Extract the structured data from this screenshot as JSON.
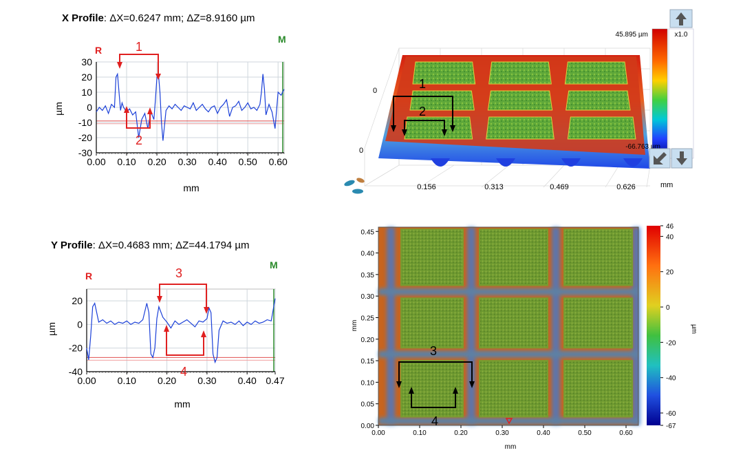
{
  "x_profile": {
    "title_bold": "X Profile",
    "title_rest": ": ΔX=0.6247 mm; ΔZ=8.9160 µm",
    "ylabel": "µm",
    "xlabel": "mm",
    "r_marker": "R",
    "m_marker": "M",
    "annotation_1": "1",
    "annotation_2": "2"
  },
  "y_profile": {
    "title_bold": "Y Profile",
    "title_rest": ": ΔX=0.4683 mm; ΔZ=44.1794 µm",
    "ylabel": "µm",
    "xlabel": "mm",
    "r_marker": "R",
    "m_marker": "M",
    "annotation_3": "3",
    "annotation_4": "4"
  },
  "surface_3d": {
    "colorbar_max": "45.895 µm",
    "colorbar_min": "-66.763 µm",
    "zoom": "x1.0",
    "x_unit": "mm",
    "axis_zero_top": "0",
    "axis_zero_bottom": "0",
    "annotation_1": "1",
    "annotation_2": "2",
    "x_ticks": [
      "0.156",
      "0.313",
      "0.469",
      "0.626"
    ]
  },
  "height_map": {
    "xlabel": "mm",
    "ylabel": "mm",
    "colorbar_label": "µm",
    "annotation_3": "3",
    "annotation_4": "4"
  },
  "chart_data": [
    {
      "type": "line",
      "id": "x_profile",
      "title": "X Profile: ΔX=0.6247 mm; ΔZ=8.9160 µm",
      "xlabel": "mm",
      "ylabel": "µm",
      "xlim": [
        0,
        0.62
      ],
      "ylim": [
        -30,
        30
      ],
      "x_ticks": [
        "0.00",
        "0.10",
        "0.20",
        "0.30",
        "0.40",
        "0.50",
        "0.60"
      ],
      "y_ticks": [
        "30",
        "20",
        "10",
        "0",
        "-10",
        "-20",
        "-30"
      ],
      "grid": true,
      "cursor_r_y": -9,
      "series": [
        {
          "color": "#1a3fd8",
          "x": [
            0.0,
            0.01,
            0.02,
            0.03,
            0.04,
            0.05,
            0.06,
            0.065,
            0.07,
            0.075,
            0.08,
            0.085,
            0.09,
            0.1,
            0.11,
            0.12,
            0.13,
            0.14,
            0.15,
            0.16,
            0.17,
            0.18,
            0.19,
            0.195,
            0.2,
            0.205,
            0.21,
            0.215,
            0.22,
            0.23,
            0.24,
            0.25,
            0.26,
            0.27,
            0.28,
            0.29,
            0.3,
            0.31,
            0.32,
            0.33,
            0.34,
            0.35,
            0.36,
            0.37,
            0.38,
            0.39,
            0.4,
            0.41,
            0.42,
            0.43,
            0.44,
            0.45,
            0.46,
            0.47,
            0.48,
            0.49,
            0.5,
            0.51,
            0.52,
            0.53,
            0.54,
            0.545,
            0.55,
            0.555,
            0.56,
            0.57,
            0.58,
            0.59,
            0.6,
            0.61,
            0.62
          ],
          "y": [
            -3,
            0,
            -2,
            1,
            -4,
            2,
            0,
            20,
            22,
            10,
            -2,
            3,
            0,
            -3,
            -1,
            -5,
            -3,
            -20,
            -8,
            -4,
            -14,
            -3,
            -8,
            5,
            20,
            22,
            10,
            -10,
            -22,
            -2,
            1,
            -1,
            2,
            0,
            -2,
            1,
            0,
            -1,
            3,
            -2,
            0,
            2,
            -1,
            -3,
            0,
            1,
            -4,
            0,
            2,
            5,
            -6,
            0,
            1,
            4,
            -2,
            0,
            3,
            -1,
            0,
            -2,
            2,
            10,
            22,
            12,
            -5,
            2,
            -3,
            -14,
            10,
            8,
            12
          ]
        }
      ]
    },
    {
      "type": "line",
      "id": "y_profile",
      "title": "Y Profile: ΔX=0.4683 mm; ΔZ=44.1794 µm",
      "xlabel": "mm",
      "ylabel": "µm",
      "xlim": [
        0,
        0.47
      ],
      "ylim": [
        -40,
        30
      ],
      "x_ticks": [
        "0.00",
        "0.10",
        "0.20",
        "0.30",
        "0.40",
        "0.47"
      ],
      "y_ticks": [
        "20",
        "0",
        "-20",
        "-40"
      ],
      "grid": true,
      "cursor_r_y": -28,
      "series": [
        {
          "color": "#1a3fd8",
          "x": [
            0.0,
            0.005,
            0.01,
            0.015,
            0.02,
            0.03,
            0.04,
            0.05,
            0.06,
            0.07,
            0.08,
            0.09,
            0.1,
            0.11,
            0.12,
            0.13,
            0.14,
            0.15,
            0.155,
            0.16,
            0.165,
            0.17,
            0.175,
            0.18,
            0.19,
            0.2,
            0.21,
            0.22,
            0.23,
            0.24,
            0.25,
            0.26,
            0.27,
            0.28,
            0.29,
            0.3,
            0.305,
            0.31,
            0.315,
            0.32,
            0.325,
            0.33,
            0.34,
            0.35,
            0.36,
            0.37,
            0.38,
            0.39,
            0.4,
            0.41,
            0.42,
            0.43,
            0.44,
            0.45,
            0.46,
            0.47
          ],
          "y": [
            -20,
            -30,
            -10,
            15,
            18,
            2,
            4,
            1,
            3,
            0,
            2,
            1,
            3,
            0,
            2,
            1,
            4,
            18,
            10,
            -25,
            -28,
            -20,
            5,
            15,
            6,
            2,
            -3,
            3,
            0,
            2,
            4,
            1,
            -2,
            3,
            2,
            5,
            14,
            10,
            -25,
            -32,
            -28,
            -5,
            3,
            1,
            2,
            0,
            3,
            -1,
            2,
            0,
            3,
            1,
            2,
            4,
            3,
            22
          ]
        }
      ]
    },
    {
      "type": "heatmap",
      "id": "surface_3d",
      "projection": "3d-surface",
      "x_ticks": [
        "0.156",
        "0.313",
        "0.469",
        "0.626"
      ],
      "x_unit": "mm",
      "colorbar": {
        "max": 45.895,
        "min": -66.763,
        "unit": "µm"
      },
      "pattern": "3x3 grid of raised square plateaus separated by deep trenches"
    },
    {
      "type": "heatmap",
      "id": "height_map",
      "xlabel": "mm",
      "ylabel": "mm",
      "xlim": [
        0,
        0.63
      ],
      "ylim": [
        0,
        0.46
      ],
      "x_ticks": [
        "0.00",
        "0.10",
        "0.20",
        "0.30",
        "0.40",
        "0.50",
        "0.60"
      ],
      "y_ticks": [
        "0.00",
        "0.05",
        "0.10",
        "0.15",
        "0.20",
        "0.25",
        "0.30",
        "0.35",
        "0.40",
        "0.45"
      ],
      "colorbar": {
        "min": -67,
        "max": 46,
        "unit": "µm",
        "ticks": [
          "46",
          "40",
          "20",
          "0",
          "-20",
          "-40",
          "-60",
          "-67"
        ]
      },
      "pattern": "3x3 grid of green square pads separated by red/blue channels"
    }
  ]
}
